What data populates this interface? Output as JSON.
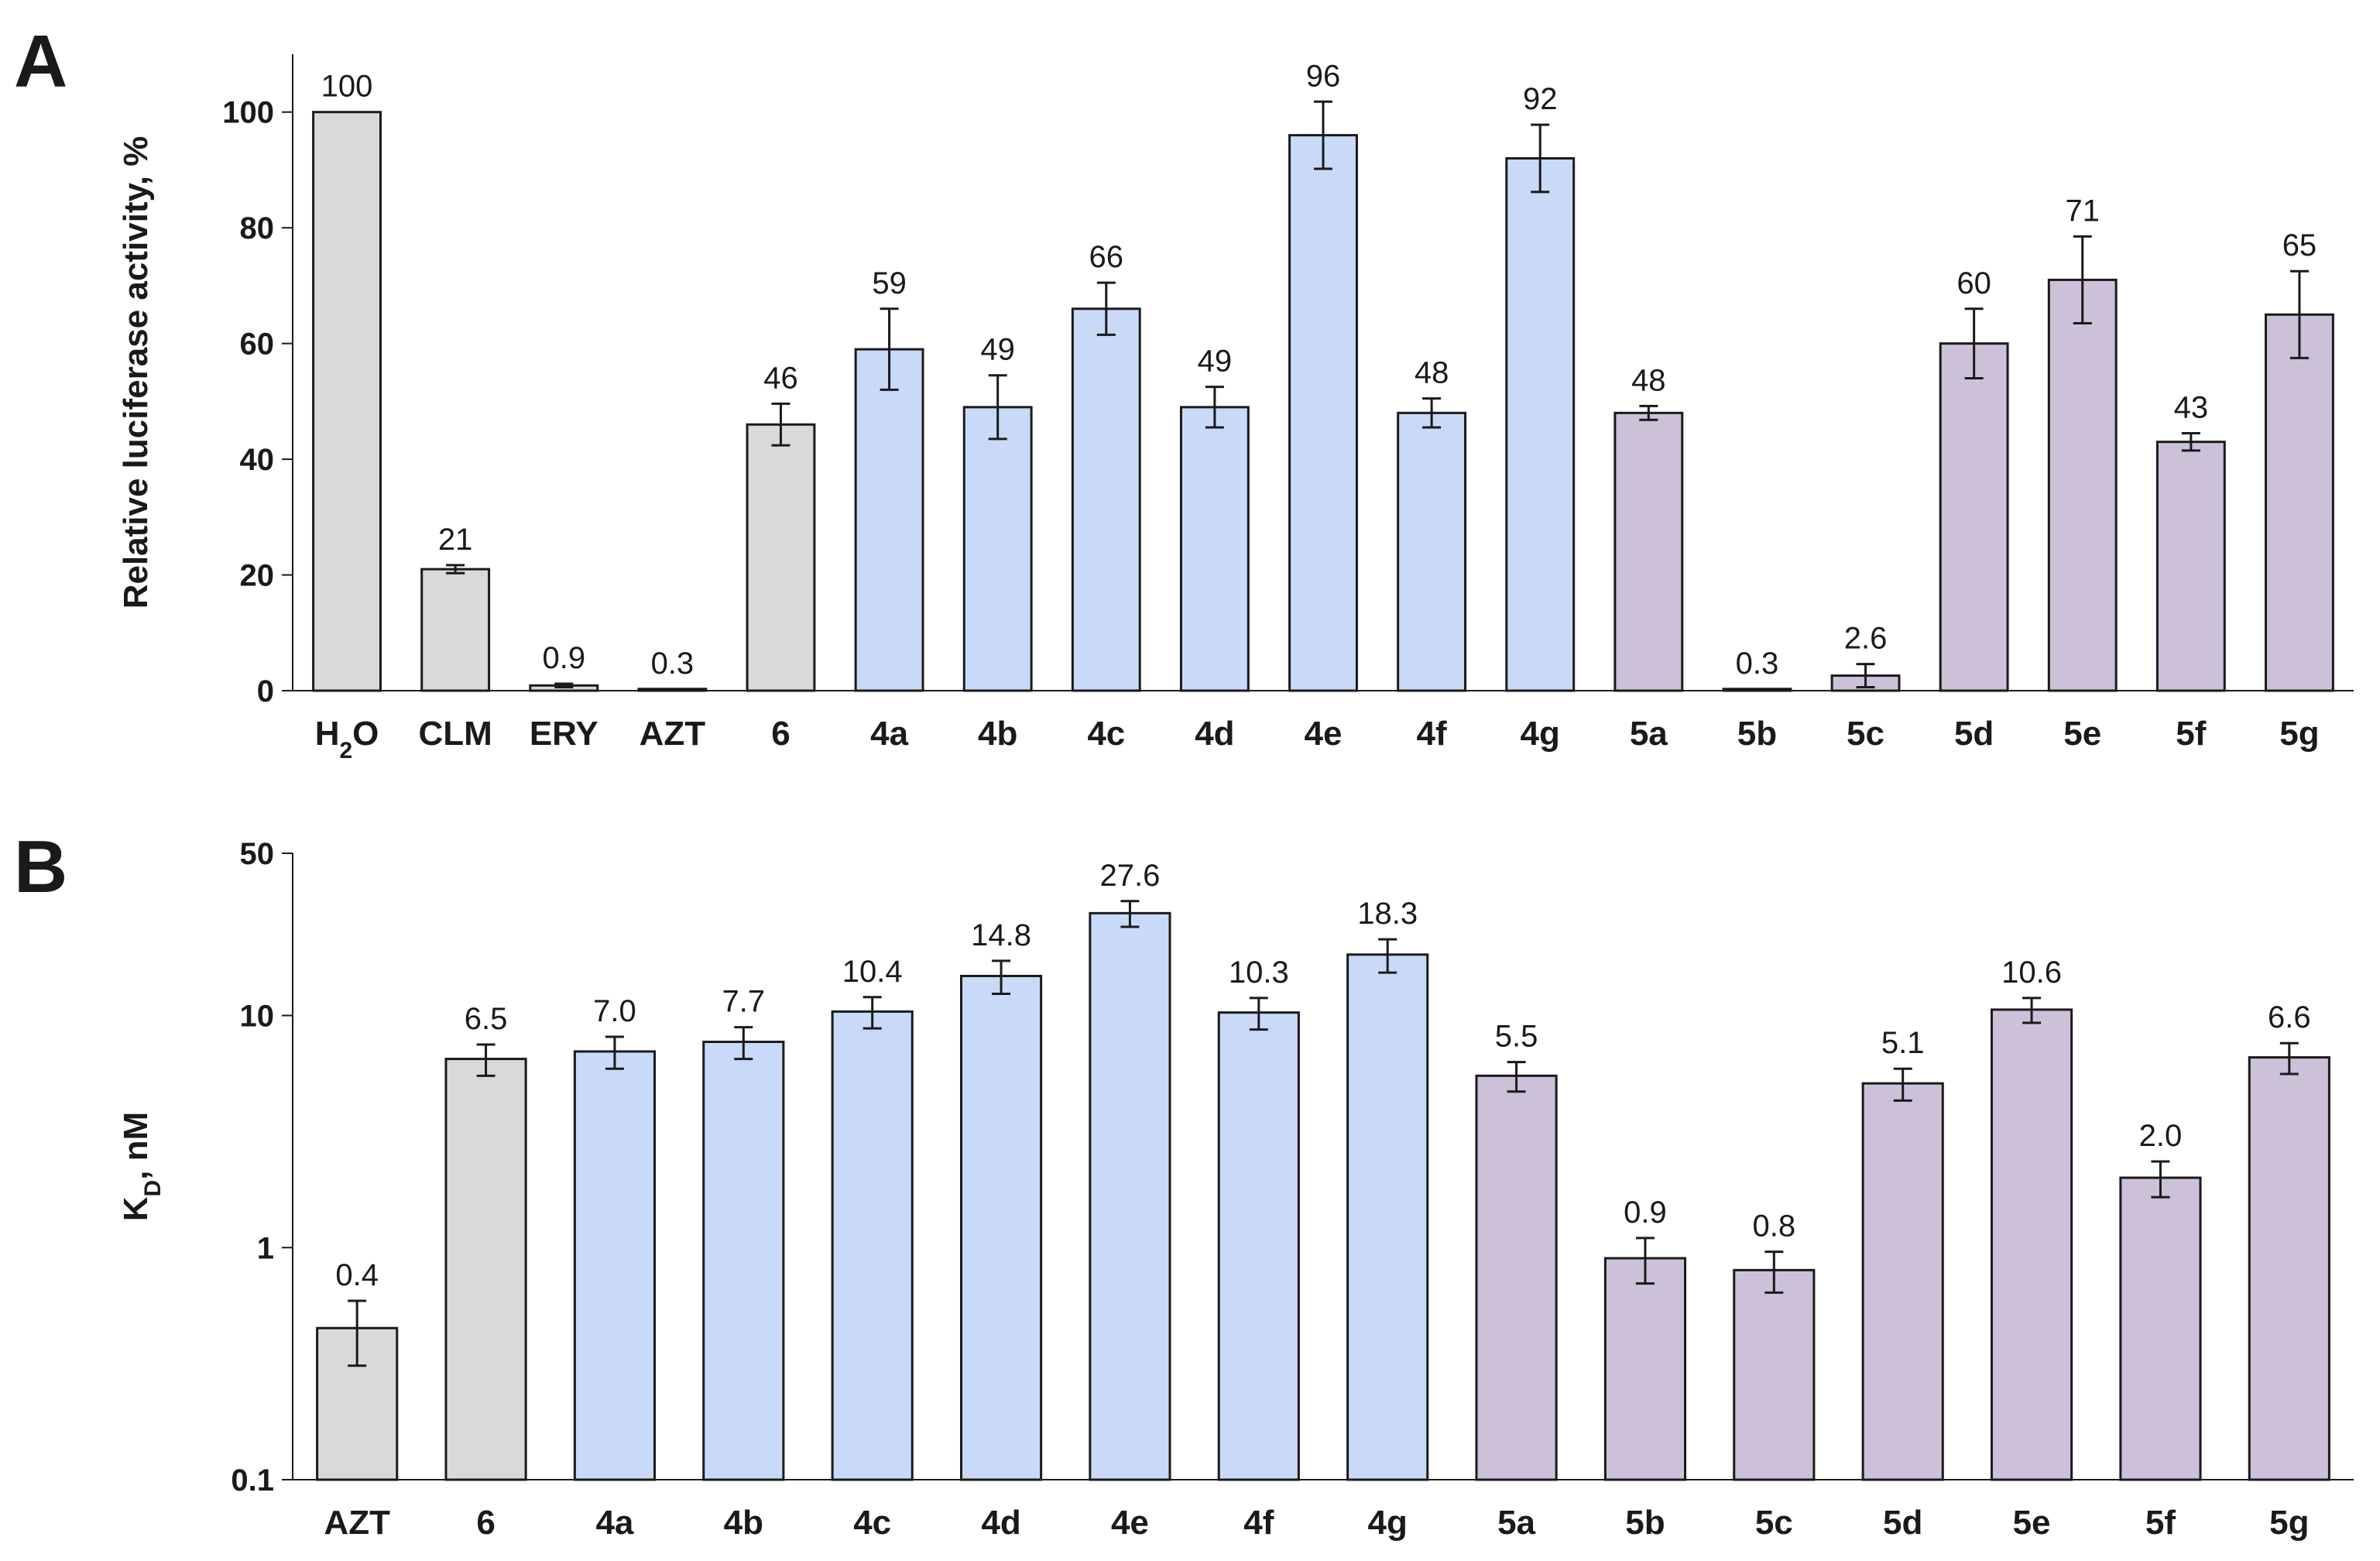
{
  "colors": {
    "controls": "#d9d9d9",
    "series4": "#c9daf8",
    "series5": "#cdc1da",
    "outline": "#1a1a1a"
  },
  "chart_data": [
    {
      "panel": "A",
      "type": "bar",
      "ylabel": "Relative luciferase activity, %",
      "ylim": [
        0,
        110
      ],
      "yticks": [
        0,
        20,
        40,
        60,
        80,
        100
      ],
      "ytick_labels": [
        "0",
        "20",
        "40",
        "60",
        "80",
        "100"
      ],
      "categories": [
        "H2O",
        "CLM",
        "ERY",
        "AZT",
        "6",
        "4a",
        "4b",
        "4c",
        "4d",
        "4e",
        "4f",
        "4g",
        "5a",
        "5b",
        "5c",
        "5d",
        "5e",
        "5f",
        "5g"
      ],
      "category_labels": [
        {
          "main": "H",
          "sub": "2",
          "tail": "O"
        },
        {
          "main": "CLM"
        },
        {
          "main": "ERY"
        },
        {
          "main": "AZT"
        },
        {
          "main": "6"
        },
        {
          "main": "4a"
        },
        {
          "main": "4b"
        },
        {
          "main": "4c"
        },
        {
          "main": "4d"
        },
        {
          "main": "4e"
        },
        {
          "main": "4f"
        },
        {
          "main": "4g"
        },
        {
          "main": "5a"
        },
        {
          "main": "5b"
        },
        {
          "main": "5c"
        },
        {
          "main": "5d"
        },
        {
          "main": "5e"
        },
        {
          "main": "5f"
        },
        {
          "main": "5g"
        }
      ],
      "values": [
        100,
        21,
        0.9,
        0.3,
        46,
        59,
        49,
        66,
        49,
        96,
        48,
        92,
        48,
        0.3,
        2.6,
        60,
        71,
        43,
        65
      ],
      "errors": [
        0,
        0.7,
        0.3,
        0,
        3.6,
        7,
        5.5,
        4.5,
        3.5,
        5.8,
        2.5,
        5.8,
        1.2,
        0,
        2,
        6,
        7.5,
        1.5,
        7.5
      ],
      "data_labels": [
        "100",
        "21",
        "0.9",
        "0.3",
        "46",
        "59",
        "49",
        "66",
        "49",
        "96",
        "48",
        "92",
        "48",
        "0.3",
        "2.6",
        "60",
        "71",
        "43",
        "65"
      ],
      "groups": [
        "controls",
        "controls",
        "controls",
        "controls",
        "controls",
        "series4",
        "series4",
        "series4",
        "series4",
        "series4",
        "series4",
        "series4",
        "series5",
        "series5",
        "series5",
        "series5",
        "series5",
        "series5",
        "series5"
      ]
    },
    {
      "panel": "B",
      "type": "bar",
      "yscale": "log",
      "ylabel_main": "K",
      "ylabel_sub": "D",
      "ylabel_tail": ", nM",
      "ylim": [
        0.1,
        50
      ],
      "yticks": [
        0.1,
        1,
        10,
        50
      ],
      "ytick_labels": [
        "0.1",
        "1",
        "10",
        "50"
      ],
      "categories": [
        "AZT",
        "6",
        "4a",
        "4b",
        "4c",
        "4d",
        "4e",
        "4f",
        "4g",
        "5a",
        "5b",
        "5c",
        "5d",
        "5e",
        "5f",
        "5g"
      ],
      "values": [
        0.45,
        6.5,
        7.0,
        7.7,
        10.4,
        14.8,
        27.6,
        10.3,
        18.3,
        5.5,
        0.9,
        0.8,
        5.1,
        10.6,
        2.0,
        6.6
      ],
      "errors": [
        0.14,
        1.0,
        1.1,
        1.2,
        1.6,
        2.4,
        3.5,
        1.6,
        3.0,
        0.8,
        0.2,
        0.16,
        0.8,
        1.3,
        0.35,
        1.0
      ],
      "data_labels": [
        "0.4",
        "6.5",
        "7.0",
        "7.7",
        "10.4",
        "14.8",
        "27.6",
        "10.3",
        "18.3",
        "5.5",
        "0.9",
        "0.8",
        "5.1",
        "10.6",
        "2.0",
        "6.6"
      ],
      "groups": [
        "controls",
        "controls",
        "series4",
        "series4",
        "series4",
        "series4",
        "series4",
        "series4",
        "series4",
        "series5",
        "series5",
        "series5",
        "series5",
        "series5",
        "series5",
        "series5"
      ]
    }
  ]
}
